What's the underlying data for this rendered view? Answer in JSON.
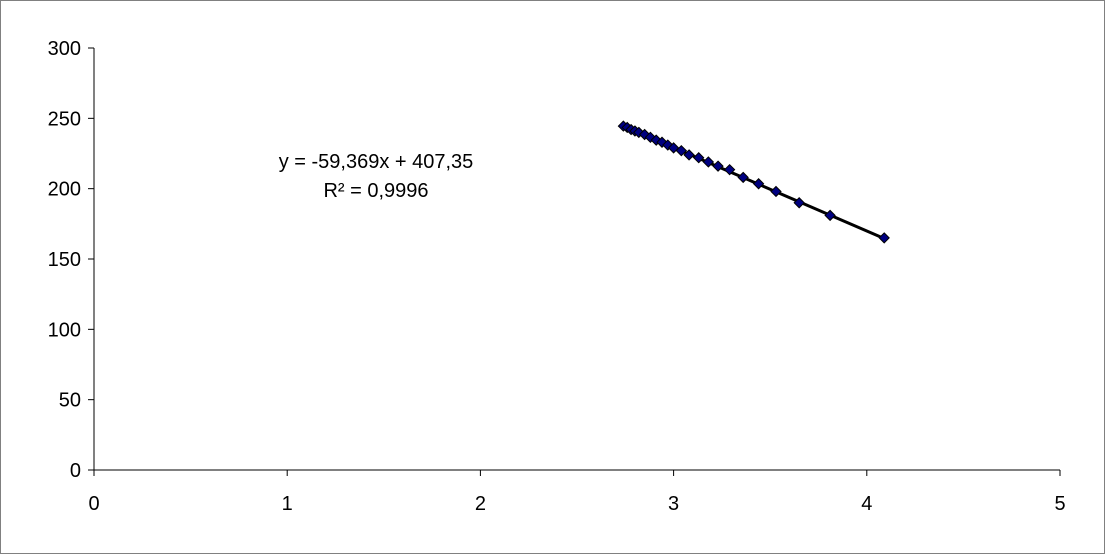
{
  "chart_data": {
    "type": "scatter",
    "title": "",
    "xlabel": "",
    "ylabel": "",
    "xlim": [
      0,
      5
    ],
    "ylim": [
      0,
      300
    ],
    "x_ticks": [
      "0",
      "1",
      "2",
      "3",
      "4",
      "5"
    ],
    "y_ticks": [
      "0",
      "50",
      "100",
      "150",
      "200",
      "250",
      "300"
    ],
    "grid": false,
    "legend": "none",
    "marker": "diamond",
    "marker_color": "#000080",
    "trendline_color": "#000000",
    "series": [
      {
        "x": [
          2.74,
          2.76,
          2.78,
          2.8,
          2.82,
          2.85,
          2.88,
          2.91,
          2.94,
          2.97,
          3.0,
          3.04,
          3.08,
          3.13,
          3.18,
          3.23,
          3.29,
          3.36,
          3.44,
          3.53,
          3.65,
          3.81,
          4.09
        ],
        "y": [
          244.5,
          243.5,
          242,
          241,
          240,
          238.5,
          236.5,
          234.5,
          233,
          231,
          229,
          227,
          224,
          222,
          219,
          216,
          213.5,
          208,
          203.5,
          198,
          190,
          181,
          165
        ]
      }
    ],
    "trendline": {
      "slope": -59.369,
      "intercept": 407.35,
      "x_range": [
        2.74,
        4.09
      ],
      "equation_label": "y = -59,369x + 407,35",
      "r2_label": "R² = 0,9996"
    }
  }
}
